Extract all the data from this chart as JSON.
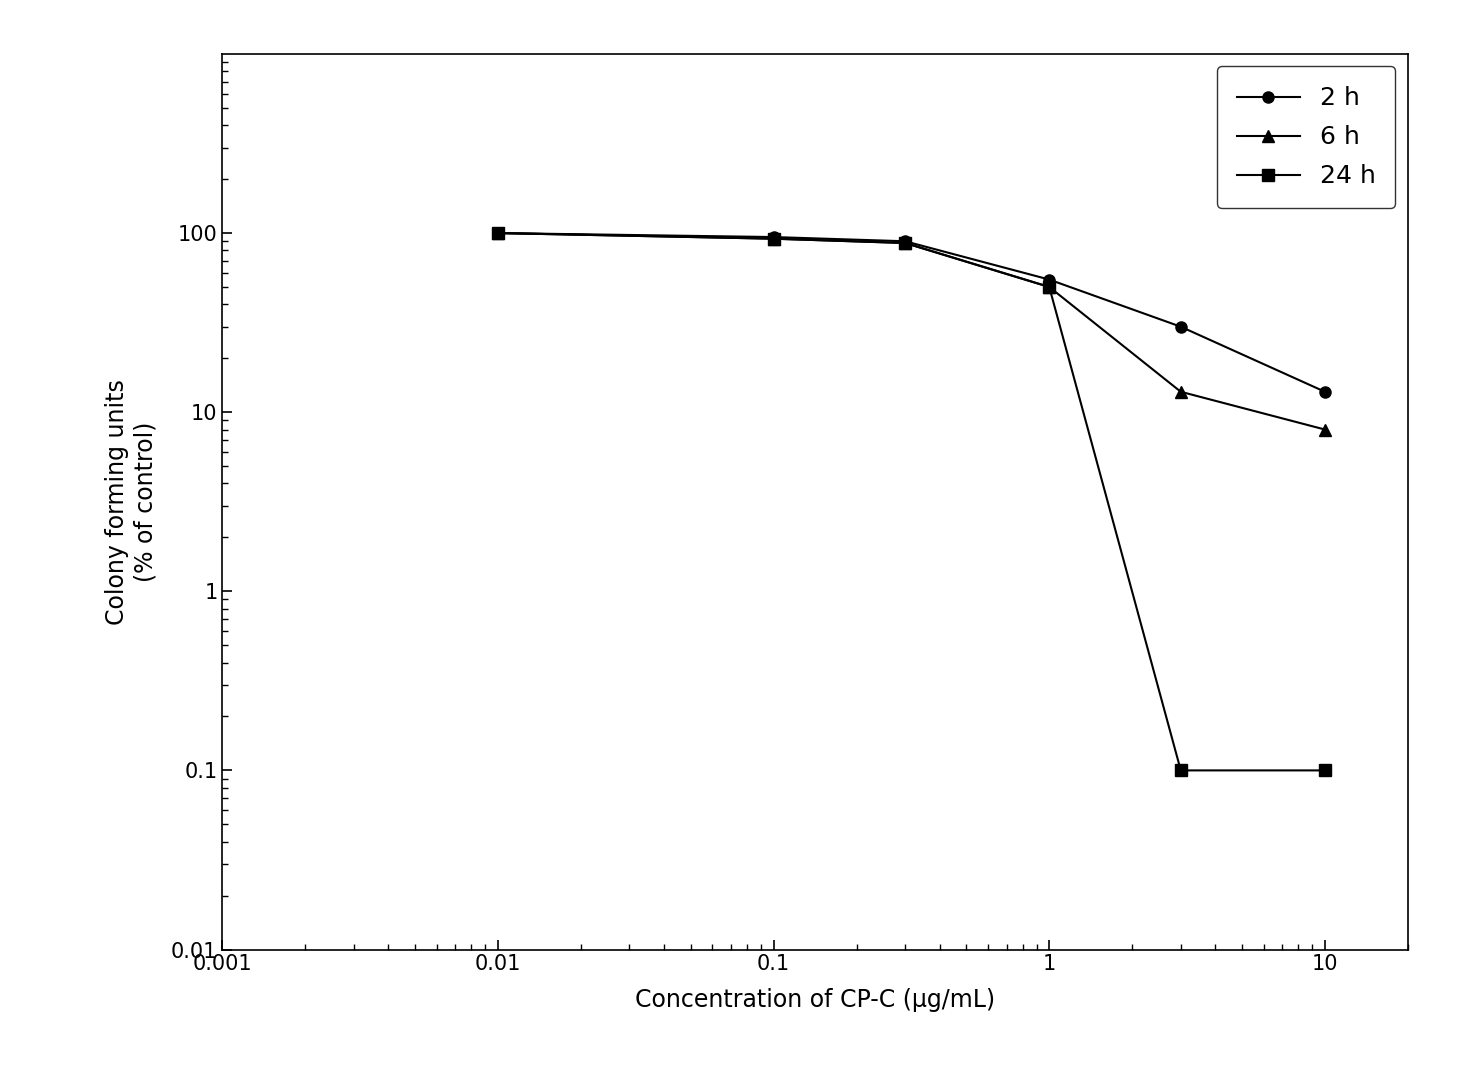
{
  "series": [
    {
      "label": "2 h",
      "marker": "o",
      "x": [
        0.01,
        0.1,
        0.3,
        1.0,
        3.0,
        10.0
      ],
      "y": [
        100,
        95,
        90,
        55,
        30,
        13
      ]
    },
    {
      "label": "6 h",
      "marker": "^",
      "x": [
        0.01,
        0.1,
        0.3,
        1.0,
        3.0,
        10.0
      ],
      "y": [
        100,
        93,
        88,
        50,
        13,
        8
      ]
    },
    {
      "label": "24 h",
      "marker": "s",
      "x": [
        0.01,
        0.1,
        0.3,
        1.0,
        3.0,
        10.0
      ],
      "y": [
        100,
        93,
        88,
        50,
        0.1,
        0.1
      ]
    }
  ],
  "line_color": "#000000",
  "xlabel": "Concentration of CP-C (μg/mL)",
  "ylabel_line1": "Colony forming units",
  "ylabel_line2": "(% of control)",
  "xlim": [
    0.001,
    20
  ],
  "ylim": [
    0.01,
    1000
  ],
  "background_color": "#ffffff",
  "title": "",
  "legend_loc": "upper right",
  "tick_fontsize": 15,
  "label_fontsize": 17,
  "legend_fontsize": 18,
  "xticks": [
    0.001,
    0.01,
    0.1,
    1,
    10
  ],
  "xtick_labels": [
    "0.001",
    "0.01",
    "0.1",
    "1",
    "10"
  ],
  "yticks": [
    0.01,
    0.1,
    1,
    10,
    100
  ],
  "ytick_labels": [
    "0.01",
    "0.1",
    "1",
    "10",
    "100"
  ]
}
